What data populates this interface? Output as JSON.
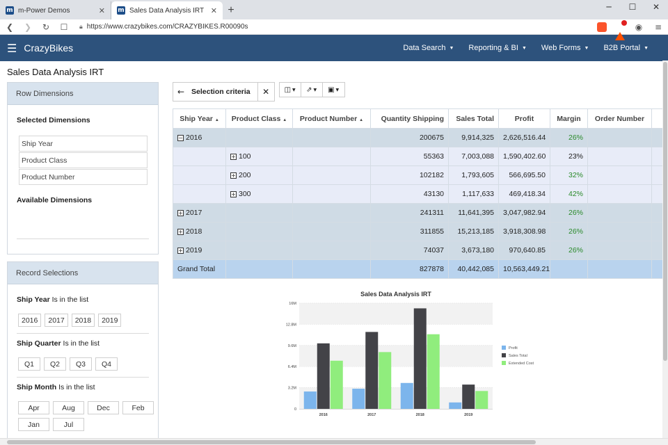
{
  "browser": {
    "tabs": [
      {
        "title": "m-Power Demos",
        "active": false
      },
      {
        "title": "Sales Data Analysis IRT",
        "active": true
      }
    ],
    "new_tab": "+",
    "url": "https://www.crazybikes.com/CRAZYBIKES.R00090s",
    "window": {
      "minimize": "─",
      "maximize": "☐",
      "close": "✕"
    }
  },
  "app": {
    "brand": "CrazyBikes",
    "menu": [
      "Data Search",
      "Reporting & BI",
      "Web Forms",
      "B2B Portal"
    ]
  },
  "page_title": "Sales Data Analysis IRT",
  "row_dimensions": {
    "header": "Row Dimensions",
    "selected_label": "Selected Dimensions",
    "selected": [
      "Ship Year",
      "Product Class",
      "Product Number"
    ],
    "available_label": "Available Dimensions"
  },
  "record_selections": {
    "header": "Record Selections",
    "groups": [
      {
        "field": "Ship Year",
        "op": "Is in the list",
        "values": [
          "2016",
          "2017",
          "2018",
          "2019"
        ]
      },
      {
        "field": "Ship Quarter",
        "op": "Is in the list",
        "values": [
          "Q1",
          "Q2",
          "Q3",
          "Q4"
        ]
      },
      {
        "field": "Ship Month",
        "op": "Is in the list",
        "values": [
          "Apr",
          "Aug",
          "Dec",
          "Feb",
          "Jan",
          "Jul"
        ]
      }
    ]
  },
  "toolbar": {
    "criteria_label": "Selection criteria"
  },
  "table": {
    "columns": [
      "Ship Year",
      "Product Class",
      "Product Number",
      "Quantity Shipping",
      "Sales Total",
      "Profit",
      "Margin",
      "Order Number"
    ],
    "rows": [
      {
        "type": "yr",
        "toggle": "−",
        "year": "2016",
        "cls": "",
        "qty": "200675",
        "sales": "9,914,325",
        "profit": "2,626,516.44",
        "margin": "26%",
        "green": true
      },
      {
        "type": "cl",
        "toggle": "+",
        "year": "",
        "cls": "100",
        "qty": "55363",
        "sales": "7,003,088",
        "profit": "1,590,402.60",
        "margin": "23%",
        "green": false
      },
      {
        "type": "cl",
        "toggle": "+",
        "year": "",
        "cls": "200",
        "qty": "102182",
        "sales": "1,793,605",
        "profit": "566,695.50",
        "margin": "32%",
        "green": true
      },
      {
        "type": "cl",
        "toggle": "+",
        "year": "",
        "cls": "300",
        "qty": "43130",
        "sales": "1,117,633",
        "profit": "469,418.34",
        "margin": "42%",
        "green": true
      },
      {
        "type": "yr",
        "toggle": "+",
        "year": "2017",
        "cls": "",
        "qty": "241311",
        "sales": "11,641,395",
        "profit": "3,047,982.94",
        "margin": "26%",
        "green": true
      },
      {
        "type": "yr",
        "toggle": "+",
        "year": "2018",
        "cls": "",
        "qty": "311855",
        "sales": "15,213,185",
        "profit": "3,918,308.98",
        "margin": "26%",
        "green": true
      },
      {
        "type": "yr",
        "toggle": "+",
        "year": "2019",
        "cls": "",
        "qty": "74037",
        "sales": "3,673,180",
        "profit": "970,640.85",
        "margin": "26%",
        "green": true
      },
      {
        "type": "gt",
        "toggle": "",
        "year": "Grand Total",
        "cls": "",
        "qty": "827878",
        "sales": "40,442,085",
        "profit": "10,563,449.21",
        "margin": "",
        "green": false
      }
    ]
  },
  "chart_data": {
    "type": "bar",
    "title": "Sales Data Analysis IRT",
    "categories": [
      "2016",
      "2017",
      "2018",
      "2019"
    ],
    "y_ticks": [
      "0",
      "3.2M",
      "6.4M",
      "9.6M",
      "12.8M",
      "16M"
    ],
    "ylim": [
      0,
      16000000
    ],
    "legend_position": "right",
    "series": [
      {
        "name": "Profit",
        "color": "#7cb5ec",
        "values": [
          2626516,
          3047983,
          3918309,
          970641
        ]
      },
      {
        "name": "Sales Total",
        "color": "#434348",
        "values": [
          9914325,
          11641395,
          15213185,
          3673180
        ]
      },
      {
        "name": "Extended Cost",
        "color": "#90ed7d",
        "values": [
          7287809,
          8593412,
          11294876,
          2702539
        ]
      }
    ]
  }
}
